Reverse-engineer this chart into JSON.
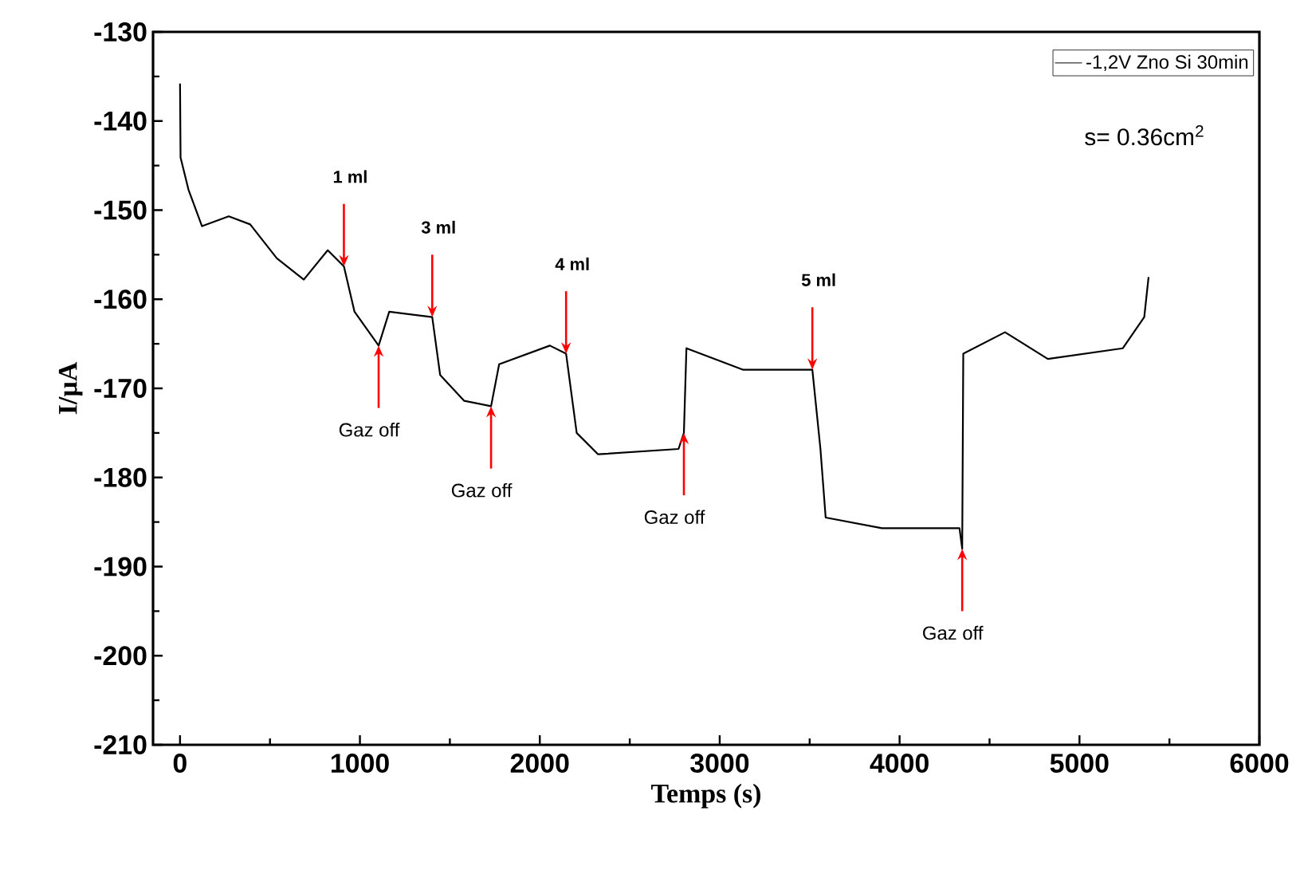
{
  "chart_data": {
    "type": "line",
    "xlabel": "Temps (s)",
    "ylabel": "I/µA",
    "xlim": [
      -150,
      6000
    ],
    "ylim": [
      -210,
      -130
    ],
    "xticks": [
      0,
      1000,
      2000,
      3000,
      4000,
      5000,
      6000
    ],
    "yticks": [
      -210,
      -200,
      -190,
      -180,
      -170,
      -160,
      -150,
      -140,
      -130
    ],
    "legend": "top right",
    "grid": false,
    "series": [
      {
        "name": "-1,2V Zno Si 30min",
        "color": "#000000",
        "x": [
          0,
          3,
          47,
          122,
          271,
          390,
          538,
          688,
          821,
          911,
          970,
          1104,
          1163,
          1402,
          1446,
          1580,
          1729,
          1774,
          2056,
          2146,
          2205,
          2324,
          2771,
          2801,
          2815,
          3128,
          3515,
          3560,
          3589,
          3902,
          4333,
          4348,
          4354,
          4586,
          4824,
          5241,
          5360,
          5384
        ],
        "values": [
          -135.8,
          -144.1,
          -147.7,
          -151.8,
          -150.7,
          -151.6,
          -155.4,
          -157.8,
          -154.5,
          -156.3,
          -161.4,
          -165.2,
          -161.4,
          -162.0,
          -168.5,
          -171.4,
          -172.0,
          -167.3,
          -165.2,
          -166.1,
          -175.0,
          -177.4,
          -176.8,
          -175.0,
          -165.5,
          -167.9,
          -167.9,
          -176.8,
          -184.5,
          -185.7,
          -185.7,
          -188.0,
          -166.1,
          -163.7,
          -166.7,
          -165.5,
          -162.0,
          -157.5
        ]
      }
    ],
    "annotations": [
      {
        "text": "1 ml",
        "x": 911,
        "y": -156.3
      },
      {
        "text": "3 ml",
        "x": 1402,
        "y": -162.0
      },
      {
        "text": "4 ml",
        "x": 2146,
        "y": -166.1
      },
      {
        "text": "5 ml",
        "x": 3515,
        "y": -167.9
      },
      {
        "text": "Gaz off",
        "x": 1104,
        "y": -165.2
      },
      {
        "text": "Gaz off",
        "x": 1729,
        "y": -172.0
      },
      {
        "text": "Gaz off",
        "x": 2801,
        "y": -175.0
      },
      {
        "text": "Gaz off",
        "x": 4348,
        "y": -188.0
      },
      "s= 0.36cm$^{2}$"
    ]
  }
}
